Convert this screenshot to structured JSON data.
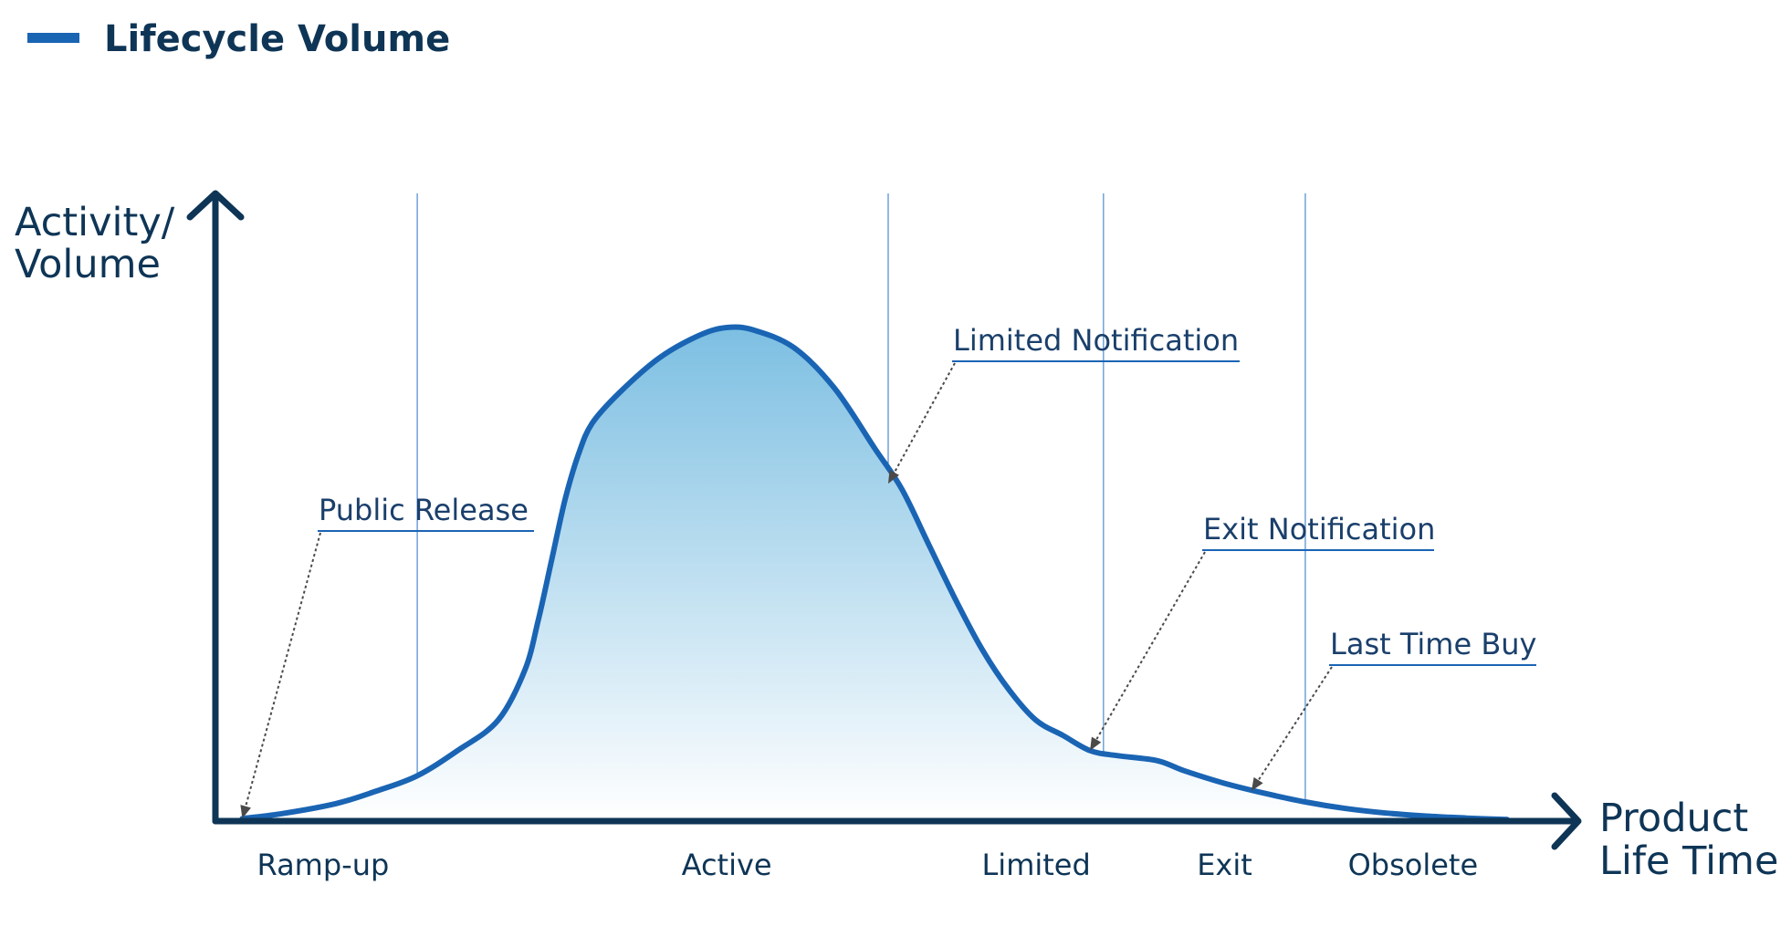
{
  "chart_data": {
    "type": "area",
    "title": "",
    "legend": {
      "placement": "top-left",
      "entries": [
        {
          "name": "Lifecycle Volume",
          "color": "#1a64b4"
        }
      ]
    },
    "ylabel_lines": [
      "Activity/",
      "Volume"
    ],
    "xlabel_lines": [
      "Product",
      "Life Time"
    ],
    "grid": false,
    "x_domain": [
      0,
      100
    ],
    "y_domain": [
      0,
      100
    ],
    "phases": [
      {
        "label": "Ramp-up",
        "center": 8
      },
      {
        "label": "Active",
        "center": 38
      },
      {
        "label": "Limited",
        "center": 61
      },
      {
        "label": "Exit",
        "center": 75
      },
      {
        "label": "Obsolete",
        "center": 89
      }
    ],
    "boundaries": [
      15,
      50,
      66,
      81
    ],
    "series": [
      {
        "name": "Lifecycle Volume",
        "points": [
          [
            2,
            0.5
          ],
          [
            5,
            1.5
          ],
          [
            9,
            3.5
          ],
          [
            12,
            6
          ],
          [
            15,
            9
          ],
          [
            18,
            14
          ],
          [
            21,
            20
          ],
          [
            23,
            30
          ],
          [
            24,
            40
          ],
          [
            25,
            52
          ],
          [
            26,
            64
          ],
          [
            27,
            73
          ],
          [
            28,
            79
          ],
          [
            30,
            85
          ],
          [
            33,
            92
          ],
          [
            36,
            96.5
          ],
          [
            38,
            98
          ],
          [
            40,
            97.5
          ],
          [
            43,
            94
          ],
          [
            46,
            86
          ],
          [
            49,
            74
          ],
          [
            51,
            66
          ],
          [
            53,
            55
          ],
          [
            55,
            44
          ],
          [
            57,
            34
          ],
          [
            59,
            26
          ],
          [
            61,
            20
          ],
          [
            63,
            17
          ],
          [
            65,
            14
          ],
          [
            67,
            13
          ],
          [
            70,
            12
          ],
          [
            72,
            10
          ],
          [
            75,
            7.5
          ],
          [
            78,
            5.5
          ],
          [
            81,
            3.8
          ],
          [
            84,
            2.5
          ],
          [
            87,
            1.6
          ],
          [
            90,
            1
          ],
          [
            93,
            0.6
          ],
          [
            96,
            0.3
          ]
        ]
      }
    ],
    "annotations": [
      {
        "label": "Public Release",
        "target": [
          2,
          0.5
        ]
      },
      {
        "label": "Limited Notification",
        "target": [
          50,
          67
        ]
      },
      {
        "label": "Exit Notification",
        "target": [
          65,
          14
        ]
      },
      {
        "label": "Last Time Buy",
        "target": [
          77,
          6
        ]
      }
    ],
    "colors": {
      "axis": "#0e3556",
      "curve": "#1a64b4",
      "fill_top": "#7dbfe2",
      "fill_bottom": "#ffffff",
      "boundary_line": "#4a8ad0",
      "label_text": "#0e3556",
      "annotation_text": "#1a3f6b",
      "annotation_underline": "#1a64b4",
      "leader": "#4a4a4a"
    }
  }
}
